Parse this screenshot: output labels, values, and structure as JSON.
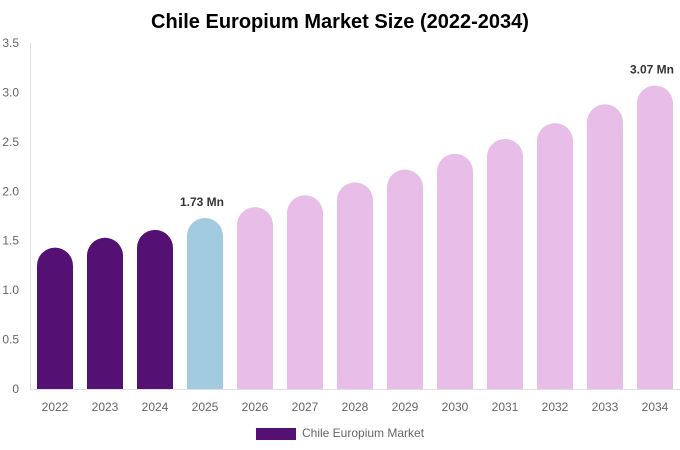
{
  "chart_data": {
    "type": "bar",
    "title": "Chile Europium Market Size (2022-2034)",
    "xlabel": "",
    "ylabel": "",
    "ylim": [
      0,
      3.5
    ],
    "yticks": [
      "0",
      "0.5",
      "1.0",
      "1.5",
      "2.0",
      "2.5",
      "3.0",
      "3.5"
    ],
    "categories": [
      "2022",
      "2023",
      "2024",
      "2025",
      "2026",
      "2027",
      "2028",
      "2029",
      "2030",
      "2031",
      "2032",
      "2033",
      "2034"
    ],
    "series": [
      {
        "name": "Chile Europium Market",
        "values": [
          1.43,
          1.53,
          1.61,
          1.73,
          1.84,
          1.96,
          2.09,
          2.22,
          2.38,
          2.53,
          2.69,
          2.88,
          3.07
        ]
      }
    ],
    "bar_colors": {
      "historical": "#541173",
      "base_year": "#a3cbdf",
      "forecast": "#e8bde8"
    },
    "data_labels": [
      {
        "index": 3,
        "text": "1.73 Mn"
      },
      {
        "index": 12,
        "text": "3.07 Mn"
      }
    ],
    "legend": {
      "label": "Chile Europium Market",
      "color": "#541173",
      "placement": "bottom"
    },
    "grid": false
  }
}
